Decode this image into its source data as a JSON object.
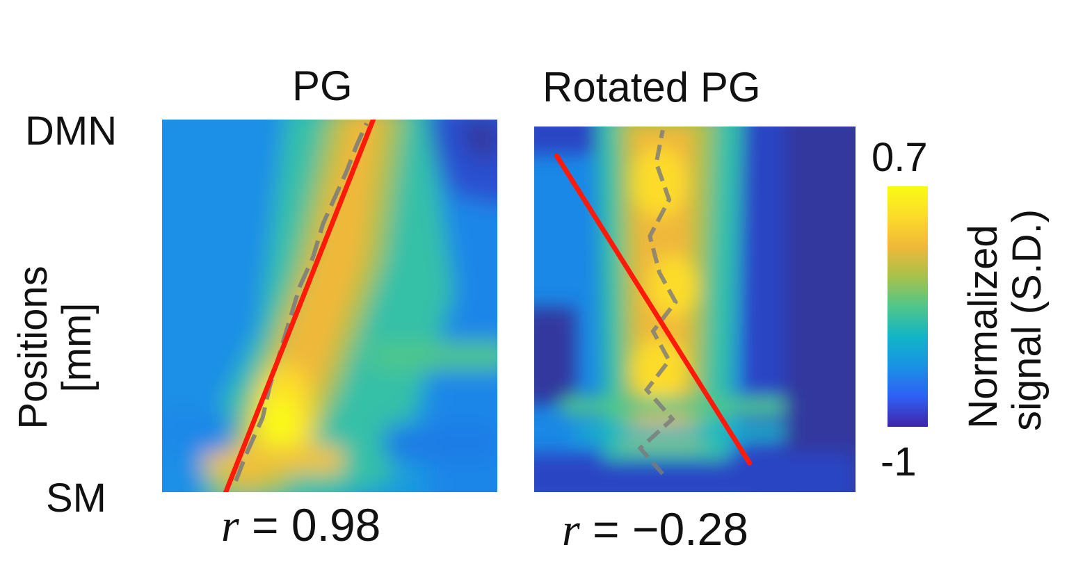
{
  "chart_data": [
    {
      "type": "heatmap",
      "title": "PG",
      "y_tick_labels": [
        "DMN",
        "SM"
      ],
      "ylabel_lines": [
        "Positions",
        "[mm]"
      ],
      "annotation": {
        "prefix": "r",
        "text": " = 0.98"
      },
      "r": 0.98,
      "fit_line": {
        "x": [
          0.19,
          0.63
        ],
        "y": [
          0.0,
          1.0
        ],
        "color": "#ff1a0a"
      },
      "peak_trace": {
        "x": [
          0.22,
          0.25,
          0.3,
          0.32,
          0.35,
          0.38,
          0.41,
          0.45,
          0.48,
          0.52,
          0.55,
          0.58,
          0.61
        ],
        "y": [
          0.03,
          0.1,
          0.2,
          0.28,
          0.37,
          0.46,
          0.55,
          0.63,
          0.72,
          0.8,
          0.86,
          0.93,
          0.99
        ]
      }
    },
    {
      "type": "heatmap",
      "title": "Rotated PG",
      "annotation": {
        "prefix": "r",
        "text": " = −0.28"
      },
      "r": -0.28,
      "fit_line": {
        "x": [
          0.07,
          0.67
        ],
        "y": [
          0.92,
          0.08
        ],
        "color": "#ff1a0a"
      },
      "peak_trace": {
        "x": [
          0.4,
          0.33,
          0.43,
          0.35,
          0.42,
          0.37,
          0.44,
          0.39,
          0.36,
          0.42,
          0.38,
          0.4
        ],
        "y": [
          0.05,
          0.12,
          0.2,
          0.28,
          0.36,
          0.44,
          0.52,
          0.6,
          0.7,
          0.8,
          0.9,
          0.99
        ]
      }
    }
  ],
  "colorbar": {
    "max_label": "0.7",
    "min_label": "-1",
    "vmin": -1,
    "vmax": 0.7,
    "label_lines": [
      "Normalized",
      "signal (S.D.)"
    ],
    "colors": [
      "#3e26a8",
      "#2f5ff5",
      "#1a91e6",
      "#12b5c6",
      "#4fc68a",
      "#a8c14b",
      "#f0b83a",
      "#fddb2a",
      "#f9fb15"
    ]
  }
}
